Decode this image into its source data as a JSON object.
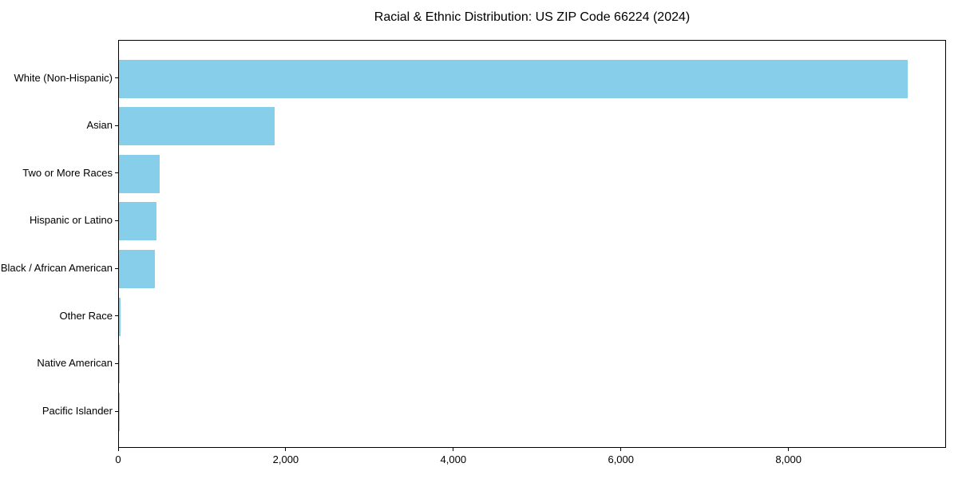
{
  "chart_data": {
    "type": "bar",
    "orientation": "horizontal",
    "title": "Racial & Ethnic Distribution: US ZIP Code 66224 (2024)",
    "categories": [
      "White (Non-Hispanic)",
      "Asian",
      "Two or More Races",
      "Hispanic or Latino",
      "Black / African American",
      "Other Race",
      "Native American",
      "Pacific Islander"
    ],
    "values": [
      9410,
      1860,
      490,
      450,
      430,
      15,
      6,
      3
    ],
    "xlabel": "",
    "ylabel": "",
    "xlim": [
      0,
      9880
    ],
    "x_ticks": [
      0,
      2000,
      4000,
      6000,
      8000
    ],
    "x_tick_labels": [
      "0",
      "2,000",
      "4,000",
      "6,000",
      "8,000"
    ],
    "bar_color": "#87CEEB",
    "axis_color": "#000000",
    "text_color": "#000000",
    "background_color": "#FFFFFF",
    "grid": false,
    "legend": null
  }
}
